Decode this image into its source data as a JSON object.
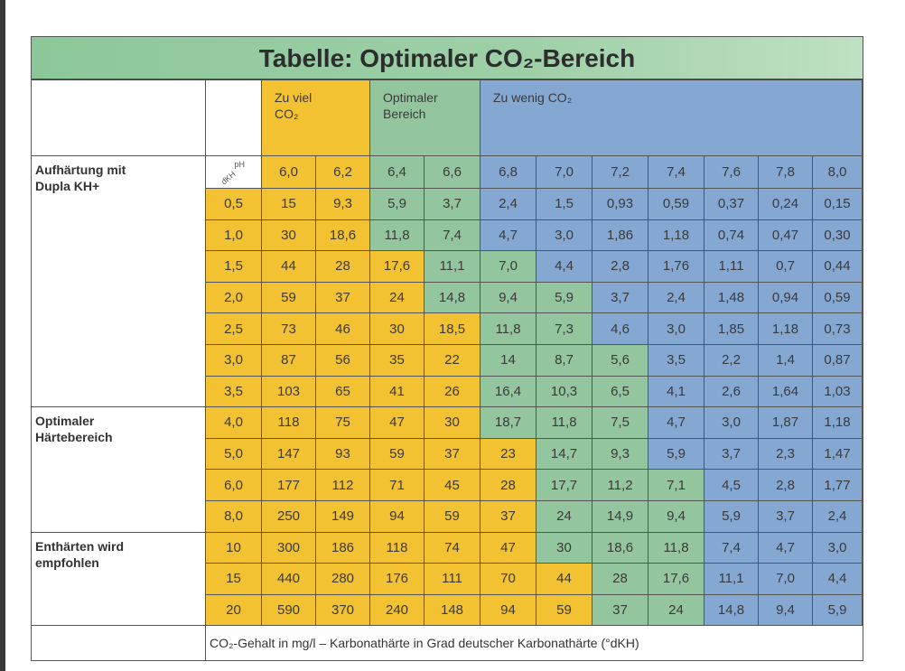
{
  "title": "Tabelle: Optimaler CO₂-Bereich",
  "table": {
    "groups": [
      {
        "lines": [
          "Zu viel",
          "CO₂"
        ],
        "color": "#f2c233"
      },
      {
        "lines": [
          "Optimaler",
          "Bereich"
        ],
        "color": "#93c59e"
      },
      {
        "lines": [
          "Zu wenig CO₂"
        ],
        "color": "#84a8d2"
      }
    ],
    "corner": {
      "top": "pH",
      "bottom": "dKH"
    },
    "ph": [
      "6,0",
      "6,2",
      "6,4",
      "6,6",
      "6,8",
      "7,0",
      "7,2",
      "7,4",
      "7,6",
      "7,8",
      "8,0"
    ],
    "ph_colors": [
      "#f2c233",
      "#f2c233",
      "#93c59e",
      "#93c59e",
      "#84a8d2",
      "#84a8d2",
      "#84a8d2",
      "#84a8d2",
      "#84a8d2",
      "#84a8d2",
      "#84a8d2"
    ],
    "kh_color": "#f2c233",
    "sections": [
      {
        "lines": [
          "Aufhärtung mit",
          "Dupla KH+"
        ],
        "rows": [
          {
            "kh": "0,5",
            "values": [
              "15",
              "9,3",
              "5,9",
              "3,7",
              "2,4",
              "1,5",
              "0,93",
              "0,59",
              "0,37",
              "0,24",
              "0,15"
            ],
            "colors": [
              "#f2c233",
              "#f2c233",
              "#93c59e",
              "#93c59e",
              "#84a8d2",
              "#84a8d2",
              "#84a8d2",
              "#84a8d2",
              "#84a8d2",
              "#84a8d2",
              "#84a8d2"
            ]
          },
          {
            "kh": "1,0",
            "values": [
              "30",
              "18,6",
              "11,8",
              "7,4",
              "4,7",
              "3,0",
              "1,86",
              "1,18",
              "0,74",
              "0,47",
              "0,30"
            ],
            "colors": [
              "#f2c233",
              "#f2c233",
              "#93c59e",
              "#93c59e",
              "#84a8d2",
              "#84a8d2",
              "#84a8d2",
              "#84a8d2",
              "#84a8d2",
              "#84a8d2",
              "#84a8d2"
            ]
          },
          {
            "kh": "1,5",
            "values": [
              "44",
              "28",
              "17,6",
              "11,1",
              "7,0",
              "4,4",
              "2,8",
              "1,76",
              "1,11",
              "0,7",
              "0,44"
            ],
            "colors": [
              "#f2c233",
              "#f2c233",
              "#f2c233",
              "#93c59e",
              "#93c59e",
              "#84a8d2",
              "#84a8d2",
              "#84a8d2",
              "#84a8d2",
              "#84a8d2",
              "#84a8d2"
            ]
          },
          {
            "kh": "2,0",
            "values": [
              "59",
              "37",
              "24",
              "14,8",
              "9,4",
              "5,9",
              "3,7",
              "2,4",
              "1,48",
              "0,94",
              "0,59"
            ],
            "colors": [
              "#f2c233",
              "#f2c233",
              "#f2c233",
              "#93c59e",
              "#93c59e",
              "#93c59e",
              "#84a8d2",
              "#84a8d2",
              "#84a8d2",
              "#84a8d2",
              "#84a8d2"
            ]
          },
          {
            "kh": "2,5",
            "values": [
              "73",
              "46",
              "30",
              "18,5",
              "11,8",
              "7,3",
              "4,6",
              "3,0",
              "1,85",
              "1,18",
              "0,73"
            ],
            "colors": [
              "#f2c233",
              "#f2c233",
              "#f2c233",
              "#f2c233",
              "#93c59e",
              "#93c59e",
              "#84a8d2",
              "#84a8d2",
              "#84a8d2",
              "#84a8d2",
              "#84a8d2"
            ]
          },
          {
            "kh": "3,0",
            "values": [
              "87",
              "56",
              "35",
              "22",
              "14",
              "8,7",
              "5,6",
              "3,5",
              "2,2",
              "1,4",
              "0,87"
            ],
            "colors": [
              "#f2c233",
              "#f2c233",
              "#f2c233",
              "#f2c233",
              "#93c59e",
              "#93c59e",
              "#93c59e",
              "#84a8d2",
              "#84a8d2",
              "#84a8d2",
              "#84a8d2"
            ]
          },
          {
            "kh": "3,5",
            "values": [
              "103",
              "65",
              "41",
              "26",
              "16,4",
              "10,3",
              "6,5",
              "4,1",
              "2,6",
              "1,64",
              "1,03"
            ],
            "colors": [
              "#f2c233",
              "#f2c233",
              "#f2c233",
              "#f2c233",
              "#93c59e",
              "#93c59e",
              "#93c59e",
              "#84a8d2",
              "#84a8d2",
              "#84a8d2",
              "#84a8d2"
            ]
          }
        ]
      },
      {
        "lines": [
          "Optimaler",
          "Härtebereich"
        ],
        "rows": [
          {
            "kh": "4,0",
            "values": [
              "118",
              "75",
              "47",
              "30",
              "18,7",
              "11,8",
              "7,5",
              "4,7",
              "3,0",
              "1,87",
              "1,18"
            ],
            "colors": [
              "#f2c233",
              "#f2c233",
              "#f2c233",
              "#f2c233",
              "#93c59e",
              "#93c59e",
              "#93c59e",
              "#84a8d2",
              "#84a8d2",
              "#84a8d2",
              "#84a8d2"
            ]
          },
          {
            "kh": "5,0",
            "values": [
              "147",
              "93",
              "59",
              "37",
              "23",
              "14,7",
              "9,3",
              "5,9",
              "3,7",
              "2,3",
              "1,47"
            ],
            "colors": [
              "#f2c233",
              "#f2c233",
              "#f2c233",
              "#f2c233",
              "#f2c233",
              "#93c59e",
              "#93c59e",
              "#84a8d2",
              "#84a8d2",
              "#84a8d2",
              "#84a8d2"
            ]
          },
          {
            "kh": "6,0",
            "values": [
              "177",
              "112",
              "71",
              "45",
              "28",
              "17,7",
              "11,2",
              "7,1",
              "4,5",
              "2,8",
              "1,77"
            ],
            "colors": [
              "#f2c233",
              "#f2c233",
              "#f2c233",
              "#f2c233",
              "#f2c233",
              "#93c59e",
              "#93c59e",
              "#93c59e",
              "#84a8d2",
              "#84a8d2",
              "#84a8d2"
            ]
          },
          {
            "kh": "8,0",
            "values": [
              "250",
              "149",
              "94",
              "59",
              "37",
              "24",
              "14,9",
              "9,4",
              "5,9",
              "3,7",
              "2,4"
            ],
            "colors": [
              "#f2c233",
              "#f2c233",
              "#f2c233",
              "#f2c233",
              "#f2c233",
              "#93c59e",
              "#93c59e",
              "#93c59e",
              "#84a8d2",
              "#84a8d2",
              "#84a8d2"
            ]
          }
        ]
      },
      {
        "lines": [
          "Enthärten wird",
          "empfohlen"
        ],
        "rows": [
          {
            "kh": "10",
            "values": [
              "300",
              "186",
              "118",
              "74",
              "47",
              "30",
              "18,6",
              "11,8",
              "7,4",
              "4,7",
              "3,0"
            ],
            "colors": [
              "#f2c233",
              "#f2c233",
              "#f2c233",
              "#f2c233",
              "#f2c233",
              "#93c59e",
              "#93c59e",
              "#93c59e",
              "#84a8d2",
              "#84a8d2",
              "#84a8d2"
            ]
          },
          {
            "kh": "15",
            "values": [
              "440",
              "280",
              "176",
              "111",
              "70",
              "44",
              "28",
              "17,6",
              "11,1",
              "7,0",
              "4,4"
            ],
            "colors": [
              "#f2c233",
              "#f2c233",
              "#f2c233",
              "#f2c233",
              "#f2c233",
              "#f2c233",
              "#93c59e",
              "#93c59e",
              "#84a8d2",
              "#84a8d2",
              "#84a8d2"
            ]
          },
          {
            "kh": "20",
            "values": [
              "590",
              "370",
              "240",
              "148",
              "94",
              "59",
              "37",
              "24",
              "14,8",
              "9,4",
              "5,9"
            ],
            "colors": [
              "#f2c233",
              "#f2c233",
              "#f2c233",
              "#f2c233",
              "#f2c233",
              "#f2c233",
              "#93c59e",
              "#93c59e",
              "#84a8d2",
              "#84a8d2",
              "#84a8d2"
            ]
          }
        ]
      }
    ],
    "footer": "CO₂-Gehalt in mg/l – Karbonathärte in Grad deutscher Karbonathärte (°dKH)"
  }
}
